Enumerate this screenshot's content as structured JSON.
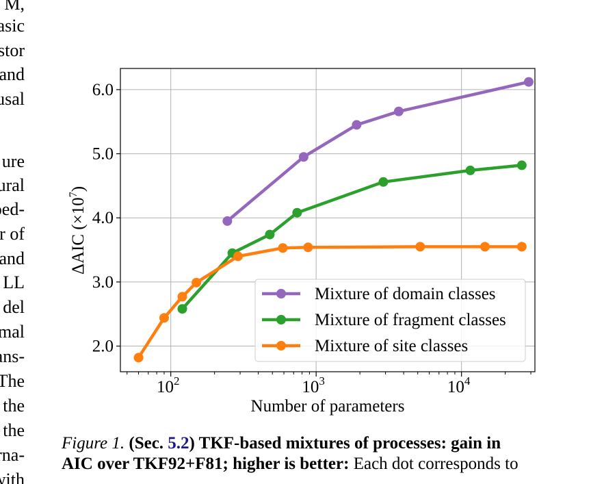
{
  "left_text_fragments": [
    "M,",
    "asic",
    "stor",
    "and",
    "usal",
    "",
    "ure",
    "ural",
    "oed-",
    "r of",
    "and",
    "LL",
    "del",
    "mal",
    "ans-",
    "The",
    "the",
    "the",
    "rna-",
    "with"
  ],
  "chart_data": {
    "type": "line",
    "title": "",
    "xlabel": "Number of parameters",
    "ylabel": "ΔAIC (×10⁷)",
    "ylabel_parts": {
      "main": "ΔAIC (×10",
      "exp": "7",
      "close": ")"
    },
    "x_scale": "log",
    "xlim": [
      45,
      32000
    ],
    "ylim": [
      1.6,
      6.33
    ],
    "xticks": [
      {
        "value": 100,
        "base": "10",
        "exp": "2"
      },
      {
        "value": 1000,
        "base": "10",
        "exp": "3"
      },
      {
        "value": 10000,
        "base": "10",
        "exp": "4"
      }
    ],
    "yticks": [
      {
        "value": 2.0,
        "label": "2.0"
      },
      {
        "value": 3.0,
        "label": "3.0"
      },
      {
        "value": 4.0,
        "label": "4.0"
      },
      {
        "value": 5.0,
        "label": "5.0"
      },
      {
        "value": 6.0,
        "label": "6.0"
      }
    ],
    "grid": true,
    "legend_position": "bottom-right",
    "series": [
      {
        "name": "Mixture of domain classes",
        "color": "#9467bd",
        "x": [
          245,
          820,
          1900,
          3700,
          29000
        ],
        "y": [
          3.95,
          4.95,
          5.45,
          5.66,
          6.12
        ]
      },
      {
        "name": "Mixture of fragment classes",
        "color": "#2ca02c",
        "x": [
          120,
          265,
          480,
          740,
          2900,
          11500,
          26000
        ],
        "y": [
          2.58,
          3.45,
          3.74,
          4.08,
          4.56,
          4.74,
          4.82
        ]
      },
      {
        "name": "Mixture of site classes",
        "color": "#ff7f0e",
        "x": [
          60,
          90,
          120,
          150,
          290,
          590,
          880,
          5200,
          14500,
          26000
        ],
        "y": [
          1.82,
          2.44,
          2.77,
          2.99,
          3.4,
          3.53,
          3.54,
          3.55,
          3.55,
          3.55
        ]
      }
    ]
  },
  "caption": {
    "label": "Figure 1.",
    "bold_open": "(Sec. ",
    "ref": "5.2",
    "bold_rest_line1": ") TKF-based mixtures of processes: gain in",
    "bold_line2": "AIC over TKF92+F81; higher is better:",
    "normal_line2": " Each dot corresponds to"
  }
}
